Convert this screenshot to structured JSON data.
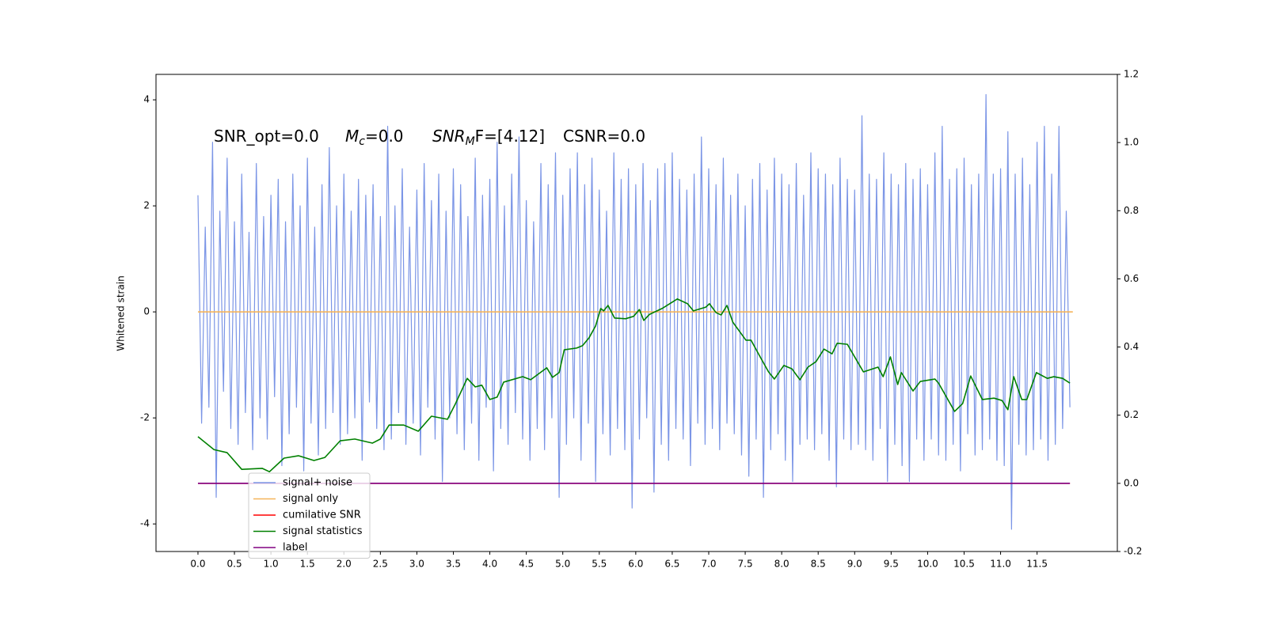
{
  "chart_data": {
    "type": "line",
    "ylabel": "Whitened strain",
    "annotations": [
      {
        "text": "SNR_opt=0.0"
      },
      {
        "base": "M",
        "sub": "c",
        "text": "=0.0"
      },
      {
        "base": "SNR",
        "sub": "M",
        "text": "F=[4.12]"
      },
      {
        "text": "CSNR=0.0"
      }
    ],
    "xlim": [
      -0.575,
      12.6
    ],
    "ylim": [
      -4.52,
      4.48
    ],
    "y2lim": [
      -0.2,
      1.2
    ],
    "xticks": [
      {
        "value": 0,
        "label": "0.0"
      },
      0.5,
      {
        "value": 1,
        "label": "1.0"
      },
      1.5,
      {
        "value": 2,
        "label": "2.0"
      },
      2.5,
      {
        "value": 3,
        "label": "3.0"
      },
      3.5,
      {
        "value": 4,
        "label": "4.0"
      },
      4.5,
      {
        "value": 5,
        "label": "5.0"
      },
      5.5,
      {
        "value": 6,
        "label": "6.0"
      },
      6.5,
      {
        "value": 7,
        "label": "7.0"
      },
      7.5,
      {
        "value": 8,
        "label": "8.0"
      },
      8.5,
      {
        "value": 9,
        "label": "9.0"
      },
      9.5,
      {
        "value": 10,
        "label": "10.0"
      },
      10.5,
      {
        "value": 11,
        "label": "11.0"
      },
      11.5
    ],
    "yticks": [
      -4,
      -2,
      0,
      2,
      4
    ],
    "y2ticks": [
      -0.2,
      {
        "value": 0,
        "label": "0.0"
      },
      0.2,
      0.4,
      0.6,
      0.8,
      {
        "value": 1,
        "label": "1.0"
      },
      1.2
    ],
    "legend": "lower left",
    "series": [
      {
        "name": "signal+ noise",
        "color": "#7b95e6",
        "x": [
          0,
          0.05,
          0.1,
          0.15,
          0.2,
          0.25,
          0.3,
          0.35,
          0.4,
          0.45,
          0.5,
          0.55,
          0.6,
          0.65,
          0.7,
          0.75,
          0.8,
          0.85,
          0.9,
          0.95,
          1,
          1.05,
          1.1,
          1.15,
          1.2,
          1.25,
          1.3,
          1.35,
          1.4,
          1.45,
          1.5,
          1.55,
          1.6,
          1.65,
          1.7,
          1.75,
          1.8,
          1.85,
          1.9,
          1.95,
          2,
          2.05,
          2.1,
          2.15,
          2.2,
          2.25,
          2.3,
          2.35,
          2.4,
          2.45,
          2.5,
          2.55,
          2.6,
          2.65,
          2.7,
          2.75,
          2.8,
          2.85,
          2.9,
          2.95,
          3,
          3.05,
          3.1,
          3.15,
          3.2,
          3.25,
          3.3,
          3.35,
          3.4,
          3.45,
          3.5,
          3.55,
          3.6,
          3.65,
          3.7,
          3.75,
          3.8,
          3.85,
          3.9,
          3.95,
          4,
          4.05,
          4.1,
          4.15,
          4.2,
          4.25,
          4.3,
          4.35,
          4.4,
          4.45,
          4.5,
          4.55,
          4.6,
          4.65,
          4.7,
          4.75,
          4.8,
          4.85,
          4.9,
          4.95,
          5,
          5.05,
          5.1,
          5.15,
          5.2,
          5.25,
          5.3,
          5.35,
          5.4,
          5.45,
          5.5,
          5.55,
          5.6,
          5.65,
          5.7,
          5.75,
          5.8,
          5.85,
          5.9,
          5.95,
          6,
          6.05,
          6.1,
          6.15,
          6.2,
          6.25,
          6.3,
          6.35,
          6.4,
          6.45,
          6.5,
          6.55,
          6.6,
          6.65,
          6.7,
          6.75,
          6.8,
          6.85,
          6.9,
          6.95,
          7,
          7.05,
          7.1,
          7.15,
          7.2,
          7.25,
          7.3,
          7.35,
          7.4,
          7.45,
          7.5,
          7.55,
          7.6,
          7.65,
          7.7,
          7.75,
          7.8,
          7.85,
          7.9,
          7.95,
          8,
          8.05,
          8.1,
          8.15,
          8.2,
          8.25,
          8.3,
          8.35,
          8.4,
          8.45,
          8.5,
          8.55,
          8.6,
          8.65,
          8.7,
          8.75,
          8.8,
          8.85,
          8.9,
          8.95,
          9,
          9.05,
          9.1,
          9.15,
          9.2,
          9.25,
          9.3,
          9.35,
          9.4,
          9.45,
          9.5,
          9.55,
          9.6,
          9.65,
          9.7,
          9.75,
          9.8,
          9.85,
          9.9,
          9.95,
          10,
          10.05,
          10.1,
          10.15,
          10.2,
          10.25,
          10.3,
          10.35,
          10.4,
          10.45,
          10.5,
          10.55,
          10.6,
          10.65,
          10.7,
          10.75,
          10.8,
          10.85,
          10.9,
          10.95,
          11,
          11.05,
          11.1,
          11.15,
          11.2,
          11.25,
          11.3,
          11.35,
          11.4,
          11.45,
          11.5,
          11.55,
          11.6,
          11.65,
          11.7,
          11.75,
          11.8,
          11.85,
          11.9,
          11.95
        ],
        "values": [
          2.2,
          -2.1,
          1.6,
          -1.8,
          3.2,
          -3.5,
          1.9,
          -1.5,
          2.9,
          -2.2,
          1.7,
          -2.5,
          2.6,
          -1.9,
          1.5,
          -2.6,
          2.8,
          -2.0,
          1.8,
          -2.4,
          2.2,
          -1.6,
          2.5,
          -2.9,
          1.7,
          -2.3,
          2.6,
          -1.8,
          2.0,
          -3.0,
          2.9,
          -2.1,
          1.6,
          -2.7,
          2.4,
          -2.2,
          3.1,
          -1.9,
          2.0,
          -2.5,
          2.6,
          -2.3,
          1.9,
          -2.0,
          2.5,
          -2.8,
          2.2,
          -1.7,
          2.4,
          -2.2,
          1.8,
          -2.6,
          3.5,
          -2.4,
          2.0,
          -1.9,
          2.7,
          -2.5,
          1.6,
          -2.1,
          2.3,
          -2.7,
          2.8,
          -1.8,
          2.1,
          -2.4,
          2.6,
          -3.2,
          1.9,
          -2.0,
          2.7,
          -2.3,
          2.4,
          -2.6,
          1.8,
          -2.1,
          2.9,
          -2.8,
          2.2,
          -1.8,
          2.5,
          -3.0,
          3.2,
          -2.2,
          2.0,
          -2.5,
          2.6,
          -1.9,
          3.3,
          -2.4,
          2.1,
          -2.8,
          1.7,
          -2.2,
          2.8,
          -2.6,
          2.4,
          -2.0,
          3.0,
          -3.5,
          2.2,
          -2.5,
          2.7,
          -2.0,
          3.0,
          -2.8,
          2.4,
          -2.1,
          2.9,
          -3.2,
          2.3,
          -2.3,
          1.9,
          -2.7,
          3.0,
          -2.2,
          2.5,
          -2.6,
          2.7,
          -3.7,
          2.4,
          -2.4,
          2.8,
          -2.0,
          2.1,
          -3.4,
          2.7,
          -2.5,
          2.8,
          -2.8,
          3.0,
          -2.2,
          2.5,
          -2.4,
          2.3,
          -2.9,
          2.6,
          -2.1,
          3.3,
          -2.5,
          2.7,
          -2.2,
          2.4,
          -2.6,
          2.9,
          -2.1,
          2.2,
          -2.3,
          2.6,
          -2.7,
          2.0,
          -3.1,
          2.5,
          -2.4,
          2.8,
          -3.5,
          2.3,
          -2.6,
          2.9,
          -2.3,
          2.6,
          -2.8,
          2.4,
          -3.2,
          2.8,
          -2.5,
          2.2,
          -2.4,
          3.0,
          -2.6,
          2.7,
          -2.3,
          2.6,
          -2.8,
          2.4,
          -3.3,
          2.9,
          -2.4,
          2.5,
          -2.6,
          2.3,
          -2.5,
          3.7,
          -2.6,
          2.6,
          -2.8,
          2.5,
          -2.2,
          3.0,
          -3.2,
          2.6,
          -2.5,
          2.4,
          -2.9,
          2.8,
          -3.2,
          2.5,
          -2.4,
          2.7,
          -2.8,
          2.4,
          -2.4,
          3.0,
          -2.7,
          3.5,
          -2.8,
          2.5,
          -2.5,
          2.7,
          -3.0,
          2.9,
          -2.3,
          2.4,
          -2.7,
          2.6,
          -2.6,
          4.1,
          -2.4,
          2.6,
          -2.8,
          2.7,
          -2.9,
          3.4,
          -4.1,
          2.6,
          -2.5,
          2.9,
          -2.7,
          2.4,
          -2.6,
          3.2,
          -2.4,
          3.5,
          -2.8,
          2.6,
          -2.5,
          3.5,
          -2.2,
          1.9,
          -1.8
        ]
      },
      {
        "name": "signal only",
        "color": "#f5b45a",
        "x": [
          0,
          11.99
        ],
        "values": [
          0,
          0
        ]
      },
      {
        "name": "cumilative SNR",
        "color": "#ff0000",
        "axis": "y2",
        "x": [
          0,
          11.95
        ],
        "values": [
          0,
          0
        ]
      },
      {
        "name": "signal statistics",
        "color": "#008000",
        "axis": "y2",
        "x": [
          0,
          0.22,
          0.4,
          0.6,
          0.88,
          0.98,
          1.18,
          1.38,
          1.59,
          1.74,
          1.95,
          2.15,
          2.39,
          2.5,
          2.62,
          2.82,
          3.02,
          3.2,
          3.42,
          3.53,
          3.69,
          3.8,
          3.89,
          4.0,
          4.1,
          4.19,
          4.45,
          4.56,
          4.78,
          4.86,
          4.95,
          5.02,
          5.19,
          5.27,
          5.36,
          5.45,
          5.52,
          5.56,
          5.62,
          5.71,
          5.86,
          5.97,
          6.05,
          6.11,
          6.19,
          6.36,
          6.57,
          6.71,
          6.79,
          6.96,
          7.01,
          7.1,
          7.17,
          7.25,
          7.33,
          7.51,
          7.58,
          7.71,
          7.82,
          7.9,
          8.03,
          8.14,
          8.25,
          8.36,
          8.47,
          8.58,
          8.69,
          8.76,
          8.9,
          9.03,
          9.12,
          9.32,
          9.39,
          9.49,
          9.59,
          9.64,
          9.8,
          9.9,
          10.1,
          10.15,
          10.37,
          10.48,
          10.59,
          10.75,
          10.91,
          11.02,
          11.1,
          11.18,
          11.29,
          11.36,
          11.49,
          11.64,
          11.73,
          11.85,
          11.95
        ],
        "values": [
          0.137,
          0.099,
          0.09,
          0.041,
          0.044,
          0.034,
          0.074,
          0.081,
          0.067,
          0.076,
          0.125,
          0.13,
          0.118,
          0.13,
          0.171,
          0.171,
          0.153,
          0.197,
          0.188,
          0.234,
          0.308,
          0.283,
          0.288,
          0.246,
          0.253,
          0.297,
          0.313,
          0.304,
          0.339,
          0.311,
          0.325,
          0.392,
          0.397,
          0.404,
          0.427,
          0.462,
          0.513,
          0.506,
          0.522,
          0.485,
          0.483,
          0.49,
          0.51,
          0.478,
          0.496,
          0.513,
          0.541,
          0.527,
          0.506,
          0.517,
          0.527,
          0.501,
          0.494,
          0.522,
          0.473,
          0.42,
          0.42,
          0.369,
          0.327,
          0.306,
          0.346,
          0.336,
          0.304,
          0.341,
          0.357,
          0.394,
          0.38,
          0.411,
          0.408,
          0.36,
          0.327,
          0.341,
          0.313,
          0.371,
          0.29,
          0.325,
          0.271,
          0.299,
          0.306,
          0.294,
          0.211,
          0.234,
          0.315,
          0.246,
          0.25,
          0.243,
          0.216,
          0.313,
          0.246,
          0.246,
          0.325,
          0.308,
          0.313,
          0.308,
          0.294
        ]
      },
      {
        "name": "label",
        "color": "#800080",
        "axis": "y2",
        "x": [
          0,
          11.95
        ],
        "values": [
          0,
          0
        ]
      }
    ]
  }
}
